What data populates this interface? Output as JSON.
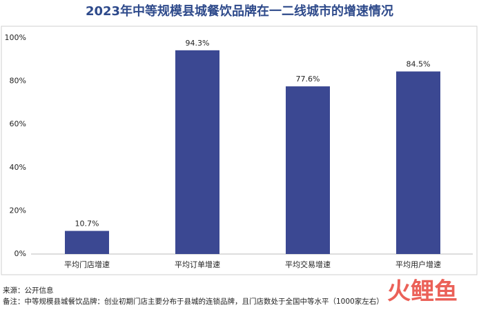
{
  "chart_data": {
    "type": "bar",
    "title": "2023年中等规模县城餐饮品牌在一二线城市的增速情况",
    "categories": [
      "平均门店增速",
      "平均订单增速",
      "平均交易增速",
      "平均用户增速"
    ],
    "values": [
      10.7,
      94.3,
      77.6,
      84.5
    ],
    "value_labels": [
      "10.7%",
      "94.3%",
      "77.6%",
      "84.5%"
    ],
    "color": "#3b4892",
    "ylim": [
      0,
      100
    ],
    "yticks": [
      {
        "value": 0,
        "label": "0%"
      },
      {
        "value": 20,
        "label": "20%"
      },
      {
        "value": 40,
        "label": "40%"
      },
      {
        "value": 60,
        "label": "60%"
      },
      {
        "value": 80,
        "label": "80%"
      },
      {
        "value": 100,
        "label": "100%"
      }
    ],
    "grid": false,
    "source": "来源：公开信息",
    "note": "备注：中等规模县城餐饮品牌：创业初期门店主要分布于县城的连锁品牌，且门店数处于全国中等水平（1000家左右）",
    "watermark": "火鲤鱼"
  }
}
